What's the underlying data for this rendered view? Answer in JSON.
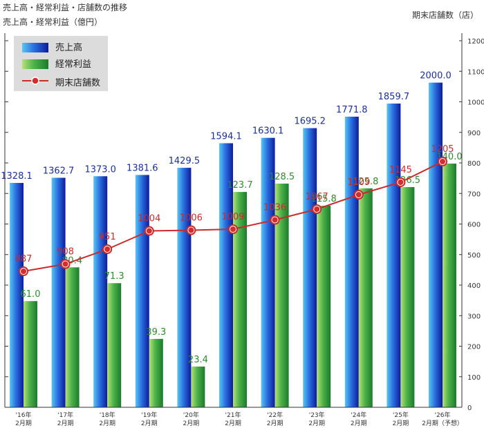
{
  "title": "売上高・経常利益・店舗数の推移",
  "left_axis_label": "売上高・経常利益（億円）",
  "right_axis_label": "期末店舗数（店）",
  "legend": [
    {
      "label": "売上高",
      "color": "#1f3fd0"
    },
    {
      "label": "経常利益",
      "color": "#3aa13a"
    },
    {
      "label": "期末店舗数",
      "color": "#cc2a2a"
    }
  ],
  "chart_data": {
    "type": "bar",
    "categories": [
      [
        "'16年",
        "2月期"
      ],
      [
        "'17年",
        "2月期"
      ],
      [
        "'18年",
        "2月期"
      ],
      [
        "'19年",
        "2月期"
      ],
      [
        "'20年",
        "2月期"
      ],
      [
        "'21年",
        "2月期"
      ],
      [
        "'22年",
        "2月期"
      ],
      [
        "'23年",
        "2月期"
      ],
      [
        "'24年",
        "2月期"
      ],
      [
        "'25年",
        "2月期"
      ],
      [
        "'26年",
        "2月期（予想）"
      ]
    ],
    "series": [
      {
        "name": "売上高",
        "type": "bar",
        "axis": "left",
        "values": [
          1328.1,
          1362.7,
          1373.0,
          1381.6,
          1429.5,
          1594.1,
          1630.1,
          1695.2,
          1771.8,
          1859.7,
          2000.0
        ],
        "labels": [
          "1328.1",
          "1362.7",
          "1373.0",
          "1381.6",
          "1429.5",
          "1594.1",
          "1630.1",
          "1695.2",
          "1771.8",
          "1859.7",
          "2000.0"
        ]
      },
      {
        "name": "経常利益",
        "type": "bar",
        "axis": "left",
        "values": [
          61.0,
          80.4,
          71.3,
          39.3,
          23.4,
          123.7,
          128.5,
          115.8,
          125.8,
          126.5,
          140.0
        ],
        "labels": [
          "61.0",
          "80.4",
          "71.3",
          "39.3",
          "23.4",
          "123.7",
          "128.5",
          "115.8",
          "125.8",
          "126.5",
          "140.0"
        ]
      },
      {
        "name": "期末店舗数",
        "type": "line",
        "axis": "right",
        "values": [
          887,
          908,
          951,
          1004,
          1006,
          1009,
          1036,
          1067,
          1109,
          1145,
          1205
        ],
        "labels": [
          "887",
          "908",
          "951",
          "1004",
          "1006",
          "1009",
          "1036",
          "1067",
          "1109",
          "1145",
          "1205"
        ]
      }
    ],
    "right_axis": {
      "min": 0,
      "max": 1200,
      "ticks": [
        "0",
        "100",
        "200",
        "300",
        "400",
        "500",
        "600",
        "700",
        "800",
        "900",
        "1000",
        "1100",
        "1200"
      ]
    },
    "legend_position": "top-left",
    "grid": false
  }
}
